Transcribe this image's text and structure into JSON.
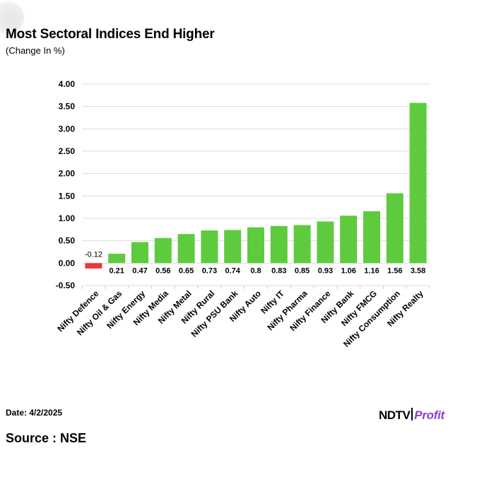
{
  "header": {
    "title": "Most Sectoral Indices End Higher",
    "subtitle": "(Change In %)"
  },
  "footer": {
    "date": "Date: 4/2/2025",
    "source": "Source : NSE",
    "logo_part1": "NDTV",
    "logo_part2": "Profit"
  },
  "colors": {
    "positive": "#5ecb3f",
    "negative": "#e8393b",
    "grid": "#dcdcdc"
  },
  "chart_data": {
    "type": "bar",
    "title": "Most Sectoral Indices End Higher",
    "subtitle": "(Change In %)",
    "xlabel": "",
    "ylabel": "",
    "ylim": [
      -0.5,
      4.0
    ],
    "yticks": [
      "4.00",
      "3.50",
      "3.00",
      "2.50",
      "2.00",
      "1.50",
      "1.00",
      "0.50",
      "0.00",
      "-0.50"
    ],
    "grid": true,
    "legend": "none",
    "categories": [
      "Nifty Defence",
      "Nifty Oil & Gas",
      "Nifty Energy",
      "Nifty Media",
      "Nifty Metal",
      "Nifty Rural",
      "Nifty PSU Bank",
      "Nifty Auto",
      "Nifty IT",
      "Nifty Pharma",
      "Nifty Finance",
      "Nifty Bank",
      "Nifty FMCG",
      "Nifty Consumption",
      "Nifty Realty"
    ],
    "values": [
      -0.12,
      0.21,
      0.47,
      0.56,
      0.65,
      0.73,
      0.74,
      0.8,
      0.83,
      0.85,
      0.93,
      1.06,
      1.16,
      1.56,
      3.58
    ],
    "labels": [
      "-0.12",
      "0.21",
      "0.47",
      "0.56",
      "0.65",
      "0.73",
      "0.74",
      "0.8",
      "0.83",
      "0.85",
      "0.93",
      "1.06",
      "1.16",
      "1.56",
      "3.58"
    ]
  }
}
